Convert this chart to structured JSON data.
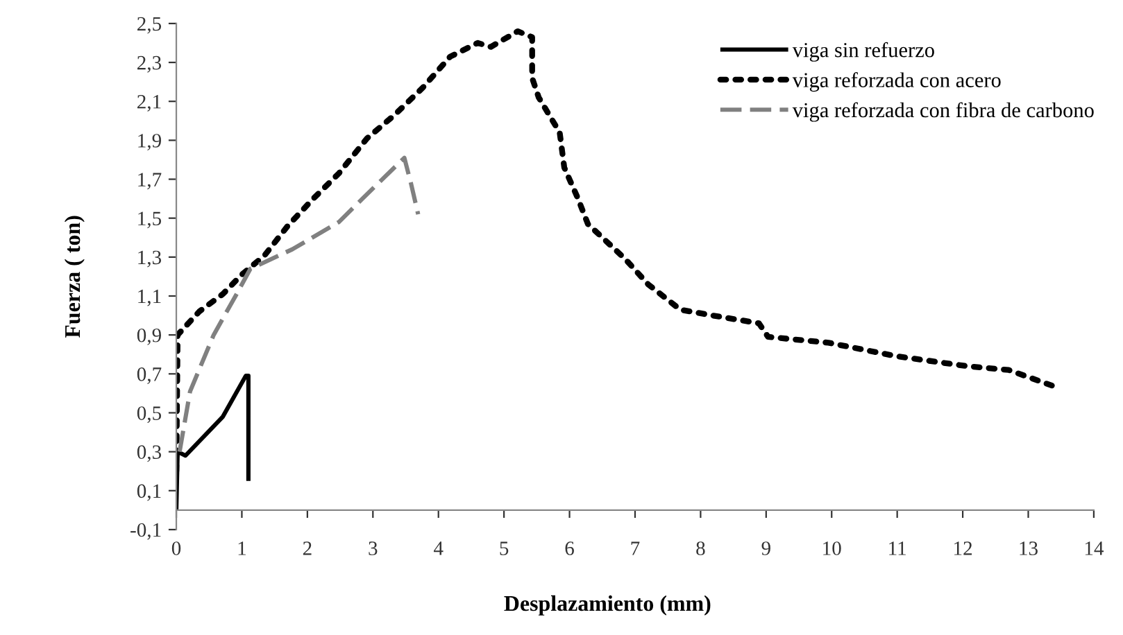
{
  "chart_data": {
    "type": "line",
    "xlabel": "Desplazamiento (mm)",
    "ylabel": "Fuerza ( ton)",
    "xlim": [
      0,
      14
    ],
    "ylim": [
      -0.1,
      2.5
    ],
    "xticks": [
      0,
      1,
      2,
      3,
      4,
      5,
      6,
      7,
      8,
      9,
      10,
      11,
      12,
      13,
      14
    ],
    "yticks": [
      {
        "value": -0.1,
        "label": "-0,1"
      },
      {
        "value": 0.1,
        "label": "0,1"
      },
      {
        "value": 0.3,
        "label": "0,3"
      },
      {
        "value": 0.5,
        "label": "0,5"
      },
      {
        "value": 0.7,
        "label": "0,7"
      },
      {
        "value": 0.9,
        "label": "0,9"
      },
      {
        "value": 1.1,
        "label": "1,1"
      },
      {
        "value": 1.3,
        "label": "1,3"
      },
      {
        "value": 1.5,
        "label": "1,5"
      },
      {
        "value": 1.7,
        "label": "1,7"
      },
      {
        "value": 1.9,
        "label": "1,9"
      },
      {
        "value": 2.1,
        "label": "2,1"
      },
      {
        "value": 2.3,
        "label": "2,3"
      },
      {
        "value": 2.5,
        "label": "2,5"
      }
    ],
    "grid": false,
    "legend": "top right",
    "marker": "none",
    "series": [
      {
        "name": "viga sin refuerzo",
        "color": "#000000",
        "line_style": "solid",
        "x": [
          0,
          0.02,
          0.14,
          0.71,
          1.06,
          1.1,
          1.1
        ],
        "values": [
          0,
          0.3,
          0.28,
          0.48,
          0.69,
          0.69,
          0.15
        ]
      },
      {
        "name": "viga reforzada con acero",
        "color": "#000000",
        "line_style": "dotted",
        "x": [
          0,
          0.02,
          0.35,
          0.71,
          1.0,
          1.35,
          1.7,
          2.09,
          2.48,
          2.91,
          3.33,
          3.76,
          4.18,
          4.6,
          4.8,
          5.21,
          5.43,
          5.43,
          5.53,
          5.85,
          5.92,
          6.13,
          6.28,
          6.85,
          7.2,
          7.69,
          8.18,
          8.89,
          9.03,
          9.95,
          11.0,
          12.06,
          12.7,
          13.36
        ],
        "values": [
          0.2,
          0.9,
          1.02,
          1.11,
          1.21,
          1.31,
          1.46,
          1.6,
          1.73,
          1.91,
          2.03,
          2.17,
          2.33,
          2.4,
          2.38,
          2.46,
          2.43,
          2.22,
          2.12,
          1.94,
          1.76,
          1.6,
          1.47,
          1.29,
          1.16,
          1.03,
          1.0,
          0.96,
          0.89,
          0.86,
          0.79,
          0.74,
          0.72,
          0.64
        ]
      },
      {
        "name": "viga reforzada con fibra de carbono",
        "color": "#808080",
        "line_style": "dashed",
        "x": [
          0.05,
          0.21,
          0.57,
          0.92,
          1.13,
          1.77,
          2.48,
          2.84,
          3.48,
          3.51,
          3.58,
          3.69
        ],
        "values": [
          0.3,
          0.61,
          0.9,
          1.11,
          1.24,
          1.34,
          1.48,
          1.6,
          1.81,
          1.77,
          1.68,
          1.52
        ]
      }
    ]
  }
}
